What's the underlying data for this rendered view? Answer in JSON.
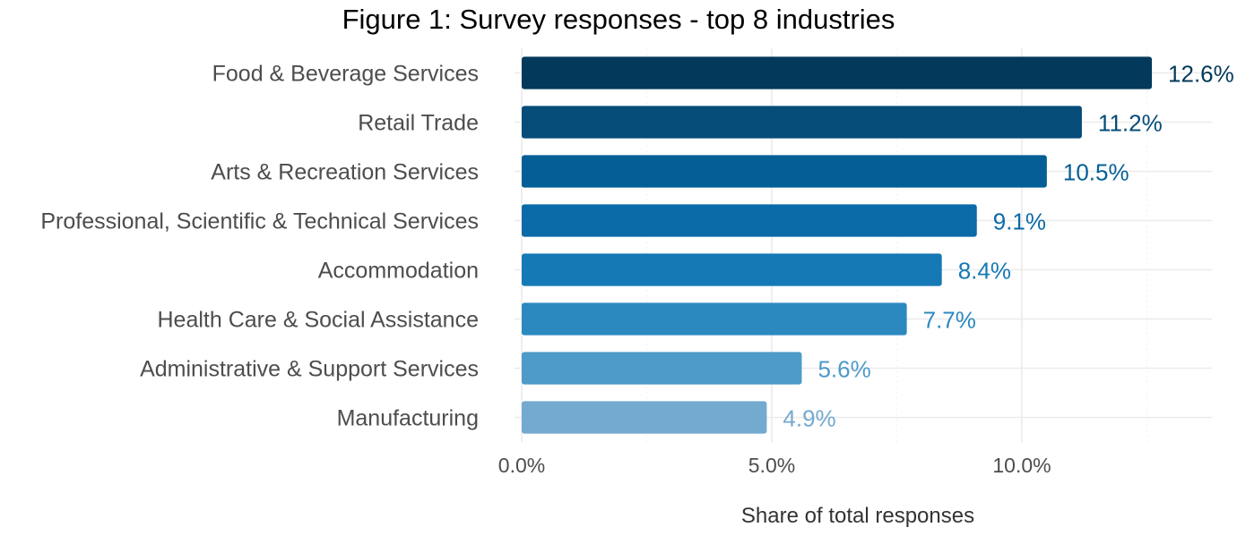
{
  "chart_data": {
    "type": "bar",
    "orientation": "horizontal",
    "title": "Figure 1: Survey responses - top 8 industries",
    "xlabel": "Share of total responses",
    "ylabel": "",
    "categories": [
      "Food & Beverage Services",
      "Retail Trade",
      "Arts & Recreation Services",
      "Professional, Scientific & Technical Services",
      "Accommodation",
      "Health Care & Social Assistance",
      "Administrative & Support Services",
      "Manufacturing"
    ],
    "values": [
      12.6,
      11.2,
      10.5,
      9.1,
      8.4,
      7.7,
      5.6,
      4.9
    ],
    "value_labels": [
      "12.6%",
      "11.2%",
      "10.5%",
      "9.1%",
      "8.4%",
      "7.7%",
      "5.6%",
      "4.9%"
    ],
    "colors": [
      "#03395a",
      "#064c79",
      "#055f97",
      "#0b6aa8",
      "#1579b5",
      "#2b89c0",
      "#4e9ac8",
      "#74a9d0"
    ],
    "xlim": [
      0,
      13.8
    ],
    "x_ticks": [
      0,
      5,
      10
    ],
    "x_tick_labels": [
      "0.0%",
      "5.0%",
      "10.0%"
    ],
    "grid": true,
    "legend": "none"
  }
}
